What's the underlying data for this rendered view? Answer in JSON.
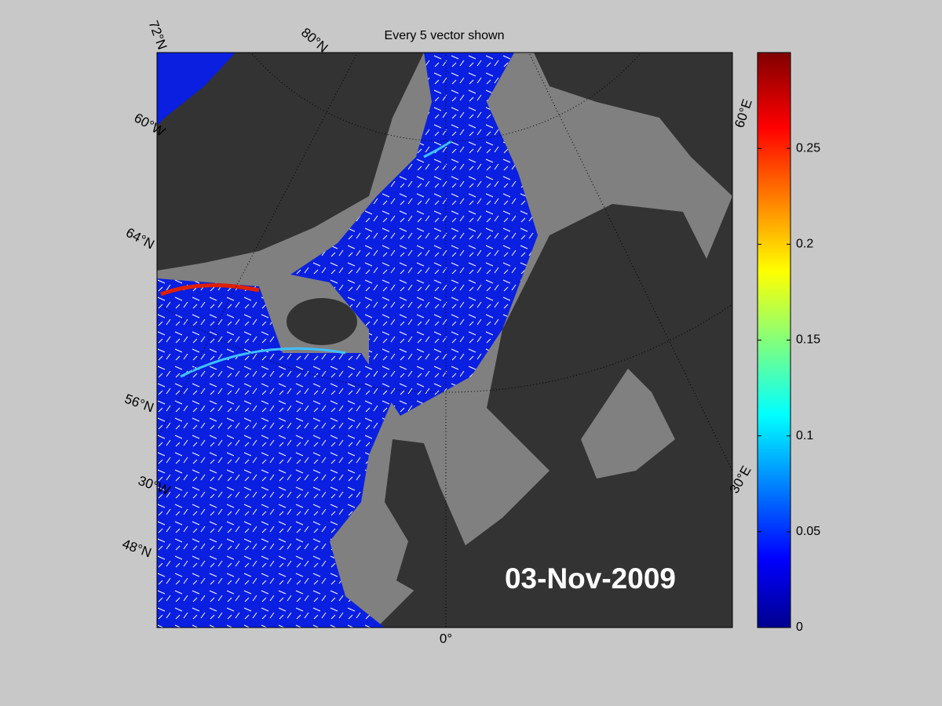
{
  "title": "Every 5 vector shown",
  "date_label": "03-Nov-2009",
  "graticule_labels": [
    "72°N",
    "80°N",
    "60°W",
    "64°N",
    "56°N",
    "30°W",
    "48°N",
    "0°",
    "30°E",
    "60°E"
  ],
  "colorbar": {
    "lim": [
      0,
      0.3
    ],
    "ticks": [
      0,
      0.05,
      0.1,
      0.15,
      0.2,
      0.25
    ],
    "colormap": "jet"
  }
}
